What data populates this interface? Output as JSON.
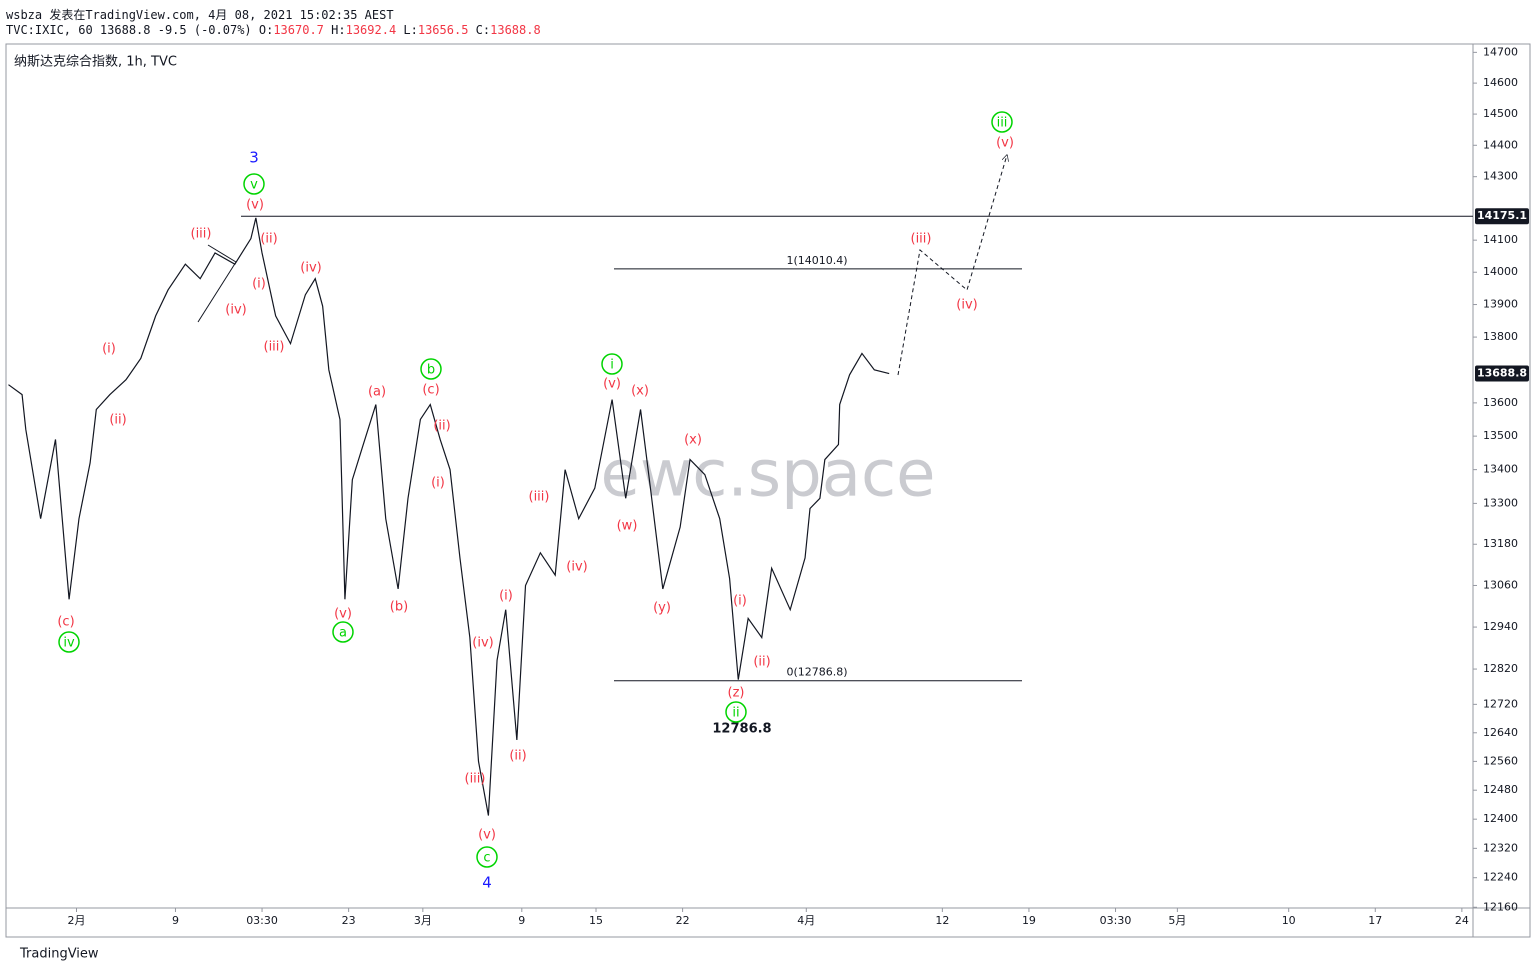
{
  "header": {
    "author_line": "wsbza 发表在TradingView.com, 4月 08, 2021 15:02:35 AEST",
    "quote": "TVC:IXIC, 60 13688.8 -9.5 (-0.07%)",
    "ohlc": [
      {
        "key": "O:",
        "value": "13670.7"
      },
      {
        "key": "H:",
        "value": "13692.4"
      },
      {
        "key": "L:",
        "value": "13656.5"
      },
      {
        "key": "C:",
        "value": "13688.8"
      }
    ]
  },
  "footer": {
    "brand": "TradingView"
  },
  "chart_data": {
    "type": "line",
    "title": "纳斯达克综合指数, 1h, TVC",
    "watermark": "ewc.space",
    "color": "#131722",
    "log_scale": true,
    "grid": false,
    "x": [
      26.5,
      27.6,
      27.9,
      29.1,
      30.3,
      31.4,
      32.2,
      33.1,
      33.6,
      34.7,
      36.0,
      37.2,
      38.4,
      39.4,
      40.8,
      42.0,
      43.2,
      44.8,
      46.1,
      46.5,
      47.0,
      48.1,
      49.3,
      50.5,
      51.3,
      51.9,
      52.4,
      53.3,
      53.7,
      54.3,
      55.1,
      56.2,
      57.0,
      58.0,
      58.8,
      59.8,
      60.6,
      61.4,
      62.2,
      63.0,
      63.8,
      64.5,
      65.3,
      66.0,
      66.7,
      67.6,
      68.3,
      69.5,
      70.7,
      71.5,
      72.6,
      73.9,
      75.3,
      76.4,
      77.6,
      78.4,
      79.4,
      80.8,
      81.6,
      82.8,
      84.0,
      84.8,
      85.5,
      86.3,
      87.4,
      88.2,
      89.7,
      90.9,
      91.3,
      92.1,
      92.5,
      93.6,
      93.7,
      94.5,
      95.5,
      96.5,
      97.7
    ],
    "values": [
      13655,
      13625,
      13520,
      13255,
      13490,
      13020,
      13255,
      13420,
      13580,
      13625,
      13670,
      13735,
      13865,
      13945,
      14025,
      13980,
      14060,
      14025,
      14105,
      14170,
      14060,
      13865,
      13780,
      13930,
      13980,
      13895,
      13700,
      13550,
      13020,
      13370,
      13465,
      13595,
      13255,
      13050,
      13315,
      13550,
      13595,
      13490,
      13400,
      13140,
      12910,
      12560,
      12410,
      12845,
      12990,
      12620,
      13060,
      13155,
      13090,
      13400,
      13255,
      13345,
      13610,
      13315,
      13580,
      13345,
      13050,
      13230,
      13430,
      13385,
      13255,
      13080,
      12790,
      12965,
      12910,
      13110,
      12990,
      13140,
      13285,
      13315,
      13430,
      13475,
      13595,
      13685,
      13750,
      13700,
      13688.8
    ],
    "xlim": [
      26.3,
      144.9
    ],
    "xticks": [
      {
        "value": 32,
        "label": "2月"
      },
      {
        "value": 40,
        "label": "9"
      },
      {
        "value": 47,
        "label": "03:30"
      },
      {
        "value": 54,
        "label": "23"
      },
      {
        "value": 60,
        "label": "3月"
      },
      {
        "value": 68,
        "label": "9"
      },
      {
        "value": 74,
        "label": "15"
      },
      {
        "value": 81,
        "label": "22"
      },
      {
        "value": 91,
        "label": "4月"
      },
      {
        "value": 102,
        "label": "12"
      },
      {
        "value": 109,
        "label": "19"
      },
      {
        "value": 116,
        "label": "03:30"
      },
      {
        "value": 121,
        "label": "5月"
      },
      {
        "value": 130,
        "label": "10"
      },
      {
        "value": 137,
        "label": "17"
      },
      {
        "value": 144,
        "label": "24"
      }
    ],
    "ylim": [
      12158,
      14724
    ],
    "yticks": [
      14700,
      14600,
      14500,
      14400,
      14300,
      14100,
      14000,
      13900,
      13800,
      13600,
      13500,
      13400,
      13300,
      13180,
      13060,
      12940,
      12820,
      12720,
      12640,
      12560,
      12480,
      12400,
      12320,
      12240,
      12160
    ],
    "price_labels": [
      14175.1,
      13688.8
    ],
    "fib_levels": [
      {
        "value": 14010.4,
        "label": "1(14010.4)"
      },
      {
        "value": 12786.8,
        "label": "0(12786.8)"
      }
    ],
    "low_label": 12786.8,
    "annotation_colors": {
      "red": "#f23645",
      "green": "#00d400",
      "blue": "#1a1aff"
    },
    "annotations": [
      {
        "text": "3",
        "style": "blue"
      },
      {
        "text": "4",
        "style": "blue"
      },
      {
        "text": "v",
        "style": "green"
      },
      {
        "text": "iv",
        "style": "green"
      },
      {
        "text": "a",
        "style": "green"
      },
      {
        "text": "b",
        "style": "green"
      },
      {
        "text": "c",
        "style": "green"
      },
      {
        "text": "i",
        "style": "green"
      },
      {
        "text": "ii",
        "style": "green"
      },
      {
        "text": "iii",
        "style": "green"
      },
      {
        "text": "(c)",
        "style": "red"
      },
      {
        "text": "(i)",
        "style": "red"
      },
      {
        "text": "(ii)",
        "style": "red"
      },
      {
        "text": "(iii)",
        "style": "red"
      },
      {
        "text": "(iv)",
        "style": "red"
      },
      {
        "text": "(v)",
        "style": "red"
      },
      {
        "text": "(ii)",
        "style": "red"
      },
      {
        "text": "(i)",
        "style": "red"
      },
      {
        "text": "(iii)",
        "style": "red"
      },
      {
        "text": "(iv)",
        "style": "red"
      },
      {
        "text": "(v)",
        "style": "red"
      },
      {
        "text": "(a)",
        "style": "red"
      },
      {
        "text": "(c)",
        "style": "red"
      },
      {
        "text": "(b)",
        "style": "red"
      },
      {
        "text": "(ii)",
        "style": "red"
      },
      {
        "text": "(i)",
        "style": "red"
      },
      {
        "text": "(iii)",
        "style": "red"
      },
      {
        "text": "(iv)",
        "style": "red"
      },
      {
        "text": "(i)",
        "style": "red"
      },
      {
        "text": "(iv)",
        "style": "red"
      },
      {
        "text": "(ii)",
        "style": "red"
      },
      {
        "text": "(iii)",
        "style": "red"
      },
      {
        "text": "(v)",
        "style": "red"
      },
      {
        "text": "(v)",
        "style": "red"
      },
      {
        "text": "(x)",
        "style": "red"
      },
      {
        "text": "(w)",
        "style": "red"
      },
      {
        "text": "(y)",
        "style": "red"
      },
      {
        "text": "(x)",
        "style": "red"
      },
      {
        "text": "(i)",
        "style": "red"
      },
      {
        "text": "(ii)",
        "style": "red"
      },
      {
        "text": "(z)",
        "style": "red"
      },
      {
        "text": "(iii)",
        "style": "red"
      },
      {
        "text": "(iv)",
        "style": "red"
      },
      {
        "text": "(v)",
        "style": "red"
      }
    ]
  }
}
